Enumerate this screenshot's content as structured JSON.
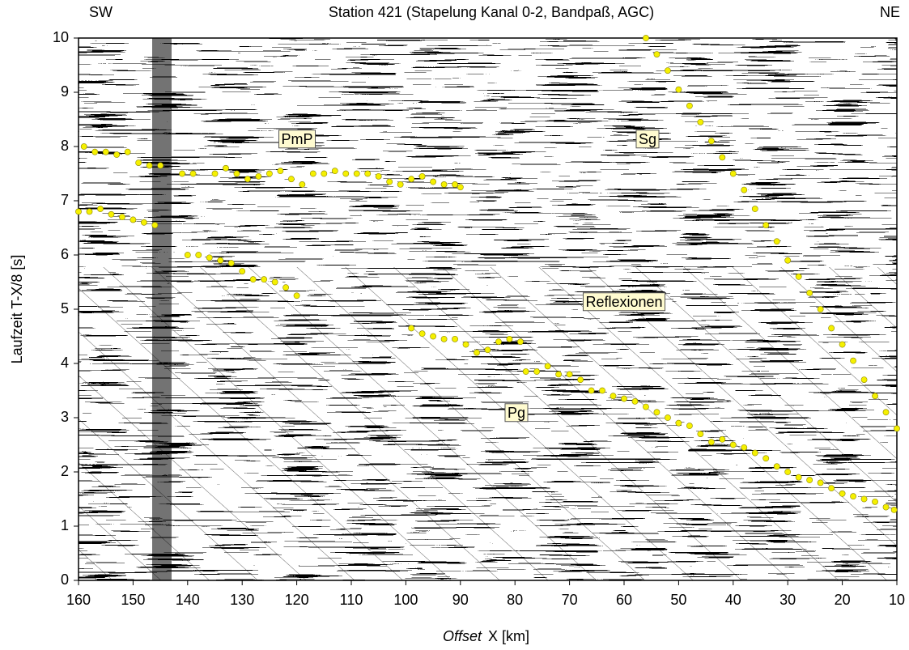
{
  "chart_data": {
    "type": "scatter",
    "title": "Station 421 (Stapelung Kanal 0-2, Bandpaß, AGC)",
    "left_label": "SW",
    "right_label": "NE",
    "xlabel_italic": "Offset",
    "xlabel": "X [km]",
    "ylabel": "Laufzeit T-X/8 [s]",
    "xlim": [
      160,
      10
    ],
    "ylim": [
      0,
      10
    ],
    "xticks": [
      160,
      150,
      140,
      130,
      120,
      110,
      100,
      90,
      80,
      70,
      60,
      50,
      40,
      30,
      20,
      10
    ],
    "yticks": [
      0,
      1,
      2,
      3,
      4,
      5,
      6,
      7,
      8,
      9,
      10
    ],
    "annotations": [
      "PmP",
      "Sg",
      "Reflexionen",
      "Pg"
    ],
    "series": [
      {
        "color": "#f5f000",
        "x": [
          159,
          157,
          155,
          153,
          151,
          149,
          147,
          145,
          143,
          141,
          139,
          137,
          135,
          133,
          131,
          129,
          127,
          125,
          123,
          121,
          119,
          117,
          115,
          113,
          111,
          109,
          107,
          105,
          103,
          101,
          99,
          97,
          95,
          93,
          91,
          90
        ],
        "values": [
          8.0,
          7.9,
          7.9,
          7.85,
          7.9,
          7.7,
          7.65,
          7.65,
          null,
          7.5,
          7.5,
          null,
          7.5,
          7.6,
          7.5,
          7.4,
          7.45,
          7.5,
          7.55,
          7.4,
          7.3,
          7.5,
          7.5,
          7.55,
          7.5,
          7.5,
          7.5,
          7.45,
          7.35,
          7.3,
          7.4,
          7.45,
          7.35,
          7.3,
          7.3,
          7.25
        ]
      },
      {
        "color": "#f5f000",
        "x": [
          160,
          158,
          156,
          154,
          152,
          150,
          148,
          146,
          143,
          140,
          138,
          136,
          134,
          132,
          130,
          128,
          126,
          124,
          122,
          120
        ],
        "values": [
          6.8,
          6.8,
          6.85,
          6.75,
          6.7,
          6.65,
          6.6,
          6.55,
          null,
          6.0,
          6.0,
          5.95,
          5.9,
          5.85,
          5.7,
          5.55,
          5.55,
          5.5,
          5.4,
          5.25
        ]
      },
      {
        "color": "#f5f000",
        "x": [
          99,
          97,
          95,
          93,
          91,
          89,
          87,
          85,
          83,
          81,
          79,
          78.5,
          78,
          76,
          74,
          72,
          70,
          68,
          66,
          64,
          62,
          60,
          58,
          56,
          54,
          52,
          50,
          48,
          46,
          44,
          42,
          40,
          38,
          36,
          34,
          32,
          30,
          28,
          26,
          24,
          22,
          20,
          18,
          16,
          14,
          12,
          10.5
        ],
        "values": [
          4.65,
          4.55,
          4.5,
          4.45,
          4.45,
          4.35,
          4.2,
          4.25,
          4.4,
          4.45,
          4.4,
          null,
          3.85,
          3.85,
          3.95,
          3.8,
          3.8,
          3.7,
          3.5,
          3.5,
          3.4,
          3.35,
          3.3,
          3.2,
          3.1,
          3.0,
          2.9,
          2.85,
          2.7,
          2.55,
          2.6,
          2.5,
          2.45,
          2.35,
          2.25,
          2.1,
          2.0,
          1.9,
          1.85,
          1.8,
          1.7,
          1.6,
          1.55,
          1.5,
          1.45,
          1.35,
          1.3
        ]
      },
      {
        "color": "#f5f000",
        "x": [
          56,
          54,
          52,
          50,
          48,
          46,
          44,
          42,
          40,
          38,
          36,
          34,
          32,
          30,
          28,
          26,
          24,
          22,
          20,
          18,
          16,
          14,
          12,
          10
        ],
        "values": [
          10.0,
          9.7,
          9.4,
          9.05,
          8.75,
          8.45,
          8.1,
          7.8,
          7.5,
          7.2,
          6.85,
          6.55,
          6.25,
          5.9,
          5.6,
          5.3,
          5.0,
          4.65,
          4.35,
          4.05,
          3.7,
          3.4,
          3.1,
          2.8
        ]
      }
    ]
  }
}
